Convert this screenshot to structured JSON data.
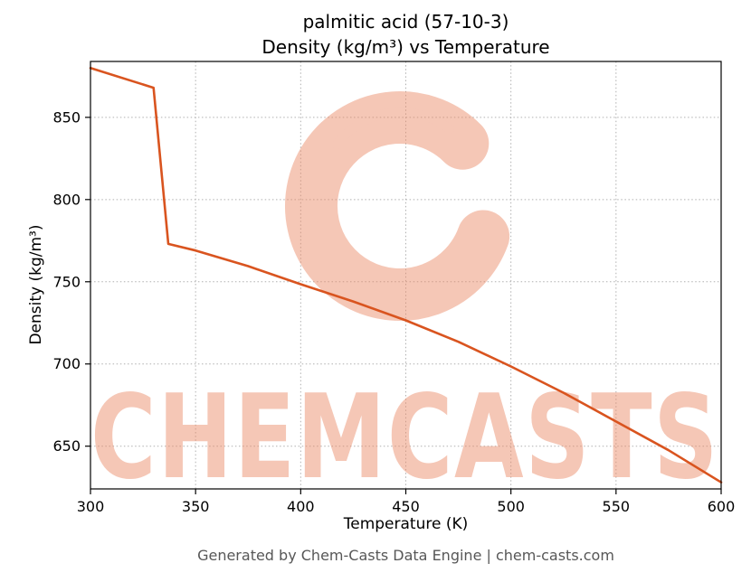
{
  "watermark": {
    "text": "CHEMCASTS",
    "color": "#ea8a68"
  },
  "footer": {
    "text": "Generated by Chem-Casts Data Engine | chem-casts.com"
  },
  "chart_data": {
    "type": "line",
    "title_line1": "palmitic acid (57-10-3)",
    "title_line2": "Density (kg/m³) vs Temperature",
    "xlabel": "Temperature (K)",
    "ylabel": "Density (kg/m³)",
    "xlim": [
      300,
      600
    ],
    "ylim": [
      624,
      884
    ],
    "xticks": [
      300,
      350,
      400,
      450,
      500,
      550,
      600
    ],
    "yticks": [
      650,
      700,
      750,
      800,
      850
    ],
    "grid": true,
    "grid_style": "dotted",
    "legend": "none",
    "line_color": "#d9541f",
    "line_width": 2.6,
    "series": [
      {
        "name": "density",
        "points": [
          [
            300,
            880
          ],
          [
            330,
            868
          ],
          [
            337,
            773
          ],
          [
            350,
            769
          ],
          [
            375,
            759.5
          ],
          [
            400,
            748.5
          ],
          [
            425,
            738
          ],
          [
            450,
            726.5
          ],
          [
            475,
            713.5
          ],
          [
            500,
            698.5
          ],
          [
            525,
            682.5
          ],
          [
            550,
            665
          ],
          [
            575,
            647.5
          ],
          [
            600,
            628
          ]
        ]
      }
    ]
  }
}
